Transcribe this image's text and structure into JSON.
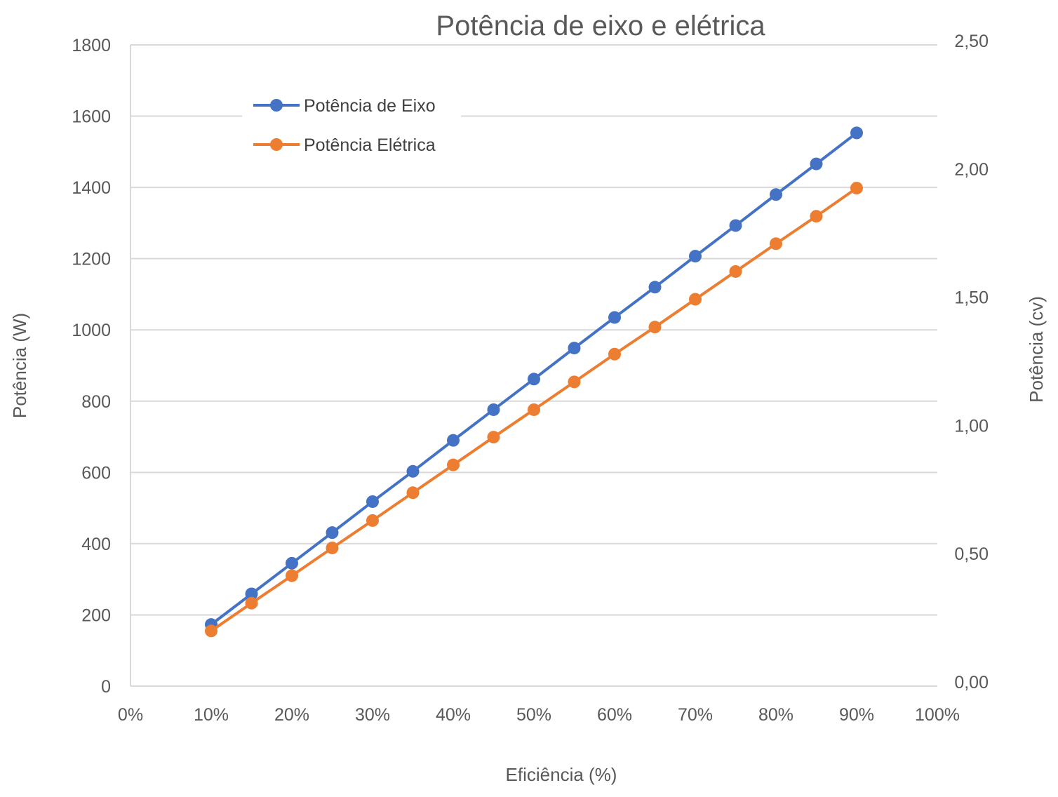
{
  "chart_data": {
    "type": "line",
    "title": "Potência de eixo e elétrica",
    "xlabel": "Eficiência (%)",
    "ylabel": "Potência (W)",
    "y2label": "Potência (cv)",
    "x": [
      10,
      15,
      20,
      25,
      30,
      35,
      40,
      45,
      50,
      55,
      60,
      65,
      70,
      75,
      80,
      85,
      90
    ],
    "xlim": [
      0,
      100
    ],
    "ylim": [
      0,
      1800
    ],
    "y2lim": [
      0,
      2.5
    ],
    "xticks": [
      "0%",
      "10%",
      "20%",
      "30%",
      "40%",
      "50%",
      "60%",
      "70%",
      "80%",
      "90%",
      "100%"
    ],
    "xtick_values": [
      0,
      10,
      20,
      30,
      40,
      50,
      60,
      70,
      80,
      90,
      100
    ],
    "yticks": [
      "0",
      "200",
      "400",
      "600",
      "800",
      "1000",
      "1200",
      "1400",
      "1600",
      "1800"
    ],
    "ytick_values": [
      0,
      200,
      400,
      600,
      800,
      1000,
      1200,
      1400,
      1600,
      1800
    ],
    "y2ticks": [
      "0,00",
      "0,50",
      "1,00",
      "1,50",
      "2,00",
      "2,50"
    ],
    "y2tick_values": [
      0,
      0.5,
      1.0,
      1.5,
      2.0,
      2.5
    ],
    "grid": true,
    "legend_position": "top-left",
    "series": [
      {
        "name": "Potência de Eixo",
        "color": "#4472C4",
        "values": [
          173,
          259,
          345,
          431,
          518,
          603,
          690,
          776,
          862,
          949,
          1035,
          1120,
          1207,
          1293,
          1380,
          1466,
          1553
        ]
      },
      {
        "name": "Potência Elétrica",
        "color": "#ED7D31",
        "values": [
          155,
          233,
          310,
          388,
          465,
          543,
          621,
          699,
          776,
          854,
          932,
          1008,
          1086,
          1164,
          1242,
          1319,
          1398
        ]
      }
    ]
  }
}
